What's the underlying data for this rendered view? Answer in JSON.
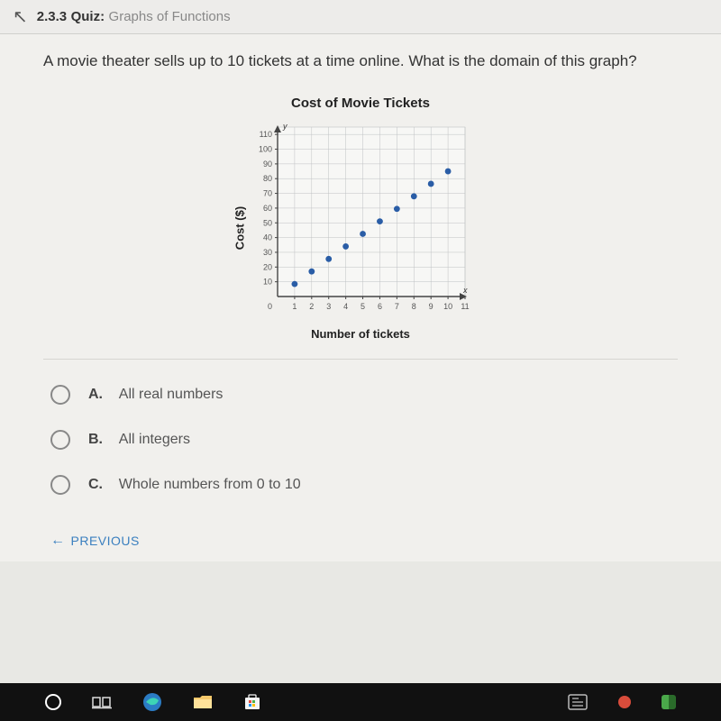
{
  "header": {
    "number": "2.3.3",
    "label": "Quiz:",
    "title": "Graphs of Functions"
  },
  "question": "A movie theater sells up to 10 tickets at a time online. What is the domain of this graph?",
  "chart": {
    "type": "scatter",
    "title": "Cost of Movie Tickets",
    "xlabel": "Number of tickets",
    "ylabel": "Cost ($)",
    "y_axis_letter": "y",
    "x_axis_letter": "x",
    "xlim": [
      0,
      11
    ],
    "ylim": [
      0,
      115
    ],
    "xticks": [
      1,
      2,
      3,
      4,
      5,
      6,
      7,
      8,
      9,
      10,
      11
    ],
    "yticks": [
      10,
      20,
      30,
      40,
      50,
      60,
      70,
      80,
      90,
      100,
      110
    ],
    "xtick_labels": [
      "1",
      "2",
      "3",
      "4",
      "5",
      "6",
      "7",
      "8",
      "9",
      "10",
      "11"
    ],
    "ytick_labels": [
      "10",
      "20",
      "30",
      "40",
      "50",
      "60",
      "70",
      "80",
      "90",
      "100",
      "110"
    ],
    "origin_label": "0",
    "points": [
      {
        "x": 1,
        "y": 8.5
      },
      {
        "x": 2,
        "y": 17
      },
      {
        "x": 3,
        "y": 25.5
      },
      {
        "x": 4,
        "y": 34
      },
      {
        "x": 5,
        "y": 42.5
      },
      {
        "x": 6,
        "y": 51
      },
      {
        "x": 7,
        "y": 59.5
      },
      {
        "x": 8,
        "y": 68
      },
      {
        "x": 9,
        "y": 76.5
      },
      {
        "x": 10,
        "y": 85
      }
    ],
    "point_color": "#2a5da6",
    "point_radius": 3.4,
    "grid_color": "#bfc1c3",
    "axis_color": "#444444",
    "background_color": "#f5f5f3",
    "plot_fill": "#f7f7f5",
    "tick_fontsize": 9,
    "axis_minor_step_x": 1,
    "axis_minor_step_y": 10
  },
  "options": [
    {
      "letter": "A.",
      "text": "All real numbers"
    },
    {
      "letter": "B.",
      "text": "All integers"
    },
    {
      "letter": "C.",
      "text": "Whole numbers from 0 to 10"
    }
  ],
  "nav": {
    "previous": "PREVIOUS"
  }
}
